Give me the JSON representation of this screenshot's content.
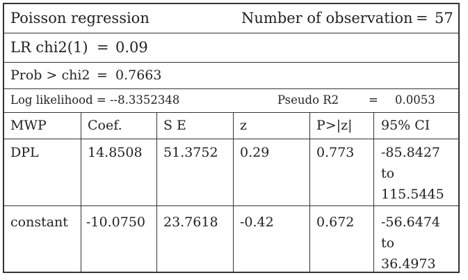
{
  "header": {
    "model": "Poisson regression",
    "nobs_label": "Number of observation",
    "nobs_eq": "=",
    "nobs_value": "57"
  },
  "lr": {
    "label": "LR chi2(1)",
    "eq": "=",
    "value": "0.09"
  },
  "prob": {
    "label": "Prob > chi2",
    "eq": "=",
    "value": "0.7663"
  },
  "loglik": {
    "label": "Log likelihood = --8.3352348",
    "pseudo_label": "Pseudo R2",
    "pseudo_eq": "=",
    "pseudo_value": "0.0053"
  },
  "columns": [
    "MWP",
    "Coef.",
    "S E",
    "z",
    "P>|z|",
    "95% CI"
  ],
  "rows": [
    {
      "name": "DPL",
      "coef": "14.8508",
      "se": "51.3752",
      "z": "0.29",
      "p": "0.773",
      "ci_low": "-85.8427",
      "ci_to": "to",
      "ci_high": "115.5445"
    },
    {
      "name": "constant",
      "coef": "-10.0750",
      "se": "23.7618",
      "z": "-0.42",
      "p": "0.672",
      "ci_low": "-56.6474",
      "ci_to": "to",
      "ci_high": "36.4973"
    }
  ]
}
